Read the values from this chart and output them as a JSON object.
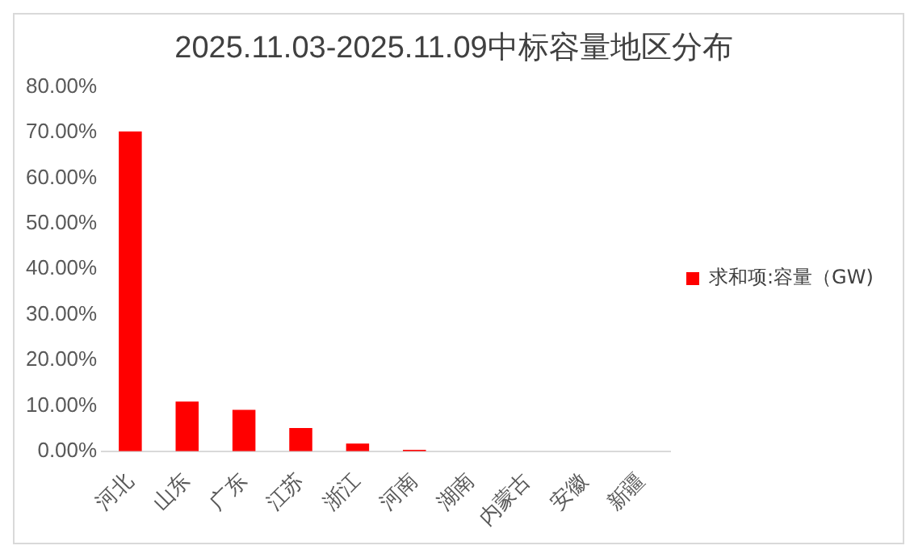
{
  "chart_data": {
    "type": "bar",
    "title": "2025.11.03-2025.11.09中标容量地区分布",
    "categories": [
      "河北",
      "山东",
      "广东",
      "江苏",
      "浙江",
      "河南",
      "湖南",
      "内蒙古",
      "安徽",
      "新疆"
    ],
    "series": [
      {
        "name": "求和项:容量（GW)",
        "color": "#ff0000",
        "values": [
          70.2,
          10.9,
          9.1,
          5.1,
          1.7,
          0.3,
          0,
          0,
          0,
          0
        ]
      }
    ],
    "ylim": [
      0,
      80
    ],
    "yticks": [
      {
        "value": 0,
        "label": "0.00%"
      },
      {
        "value": 10,
        "label": "10.00%"
      },
      {
        "value": 20,
        "label": "20.00%"
      },
      {
        "value": 30,
        "label": "30.00%"
      },
      {
        "value": 40,
        "label": "40.00%"
      },
      {
        "value": 50,
        "label": "50.00%"
      },
      {
        "value": 60,
        "label": "60.00%"
      },
      {
        "value": 70,
        "label": "70.00%"
      },
      {
        "value": 80,
        "label": "80.00%"
      }
    ],
    "grid": false,
    "legend": "right"
  }
}
